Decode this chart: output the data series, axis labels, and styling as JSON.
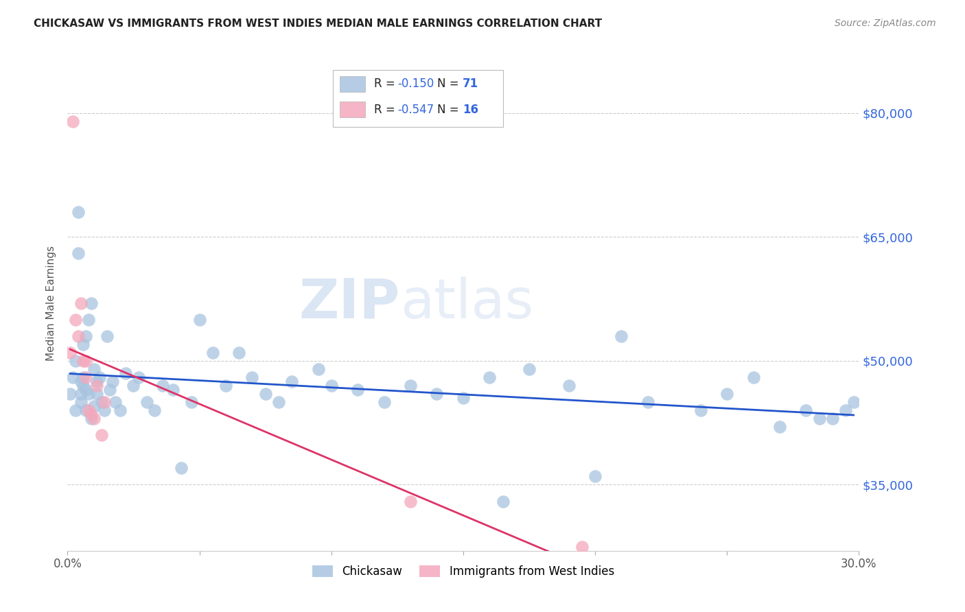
{
  "title": "CHICKASAW VS IMMIGRANTS FROM WEST INDIES MEDIAN MALE EARNINGS CORRELATION CHART",
  "source": "Source: ZipAtlas.com",
  "ylabel": "Median Male Earnings",
  "xlim": [
    0.0,
    0.3
  ],
  "ylim": [
    27000,
    87000
  ],
  "ytick_labels": [
    "$35,000",
    "$50,000",
    "$65,000",
    "$80,000"
  ],
  "ytick_values": [
    35000,
    50000,
    65000,
    80000
  ],
  "watermark": "ZIPatlas",
  "chickasaw_color": "#a8c4e0",
  "west_indies_color": "#f4a8bc",
  "trendline_chickasaw_color": "#2255cc",
  "trendline_west_indies_color": "#dd3366",
  "background_color": "#ffffff",
  "grid_color": "#cccccc",
  "title_color": "#222222",
  "right_tick_color": "#3366dd",
  "value_color": "#3366dd",
  "label_color": "#222222",
  "chickasaw_x": [
    0.001,
    0.002,
    0.003,
    0.003,
    0.004,
    0.004,
    0.005,
    0.005,
    0.005,
    0.006,
    0.006,
    0.006,
    0.007,
    0.007,
    0.007,
    0.008,
    0.008,
    0.009,
    0.009,
    0.01,
    0.01,
    0.011,
    0.011,
    0.012,
    0.013,
    0.014,
    0.015,
    0.016,
    0.017,
    0.018,
    0.02,
    0.022,
    0.025,
    0.027,
    0.03,
    0.033,
    0.036,
    0.04,
    0.043,
    0.047,
    0.05,
    0.055,
    0.06,
    0.065,
    0.07,
    0.075,
    0.08,
    0.085,
    0.095,
    0.1,
    0.11,
    0.12,
    0.13,
    0.14,
    0.15,
    0.16,
    0.165,
    0.175,
    0.19,
    0.2,
    0.21,
    0.22,
    0.24,
    0.25,
    0.26,
    0.27,
    0.28,
    0.285,
    0.29,
    0.295,
    0.298
  ],
  "chickasaw_y": [
    46000,
    48000,
    44000,
    50000,
    68000,
    63000,
    46000,
    47500,
    45000,
    48000,
    52000,
    47000,
    44000,
    46500,
    53000,
    55000,
    46000,
    57000,
    43000,
    49000,
    44500,
    46000,
    47500,
    48000,
    45000,
    44000,
    53000,
    46500,
    47500,
    45000,
    44000,
    48500,
    47000,
    48000,
    45000,
    44000,
    47000,
    46500,
    37000,
    45000,
    55000,
    51000,
    47000,
    51000,
    48000,
    46000,
    45000,
    47500,
    49000,
    47000,
    46500,
    45000,
    47000,
    46000,
    45500,
    48000,
    33000,
    49000,
    47000,
    36000,
    53000,
    45000,
    44000,
    46000,
    48000,
    42000,
    44000,
    43000,
    43000,
    44000,
    45000
  ],
  "west_indies_x": [
    0.001,
    0.002,
    0.003,
    0.004,
    0.005,
    0.006,
    0.007,
    0.007,
    0.008,
    0.009,
    0.01,
    0.011,
    0.013,
    0.014,
    0.13,
    0.195
  ],
  "west_indies_y": [
    51000,
    79000,
    55000,
    53000,
    57000,
    50000,
    48000,
    50000,
    44000,
    43500,
    43000,
    47000,
    41000,
    45000,
    33000,
    27500
  ]
}
